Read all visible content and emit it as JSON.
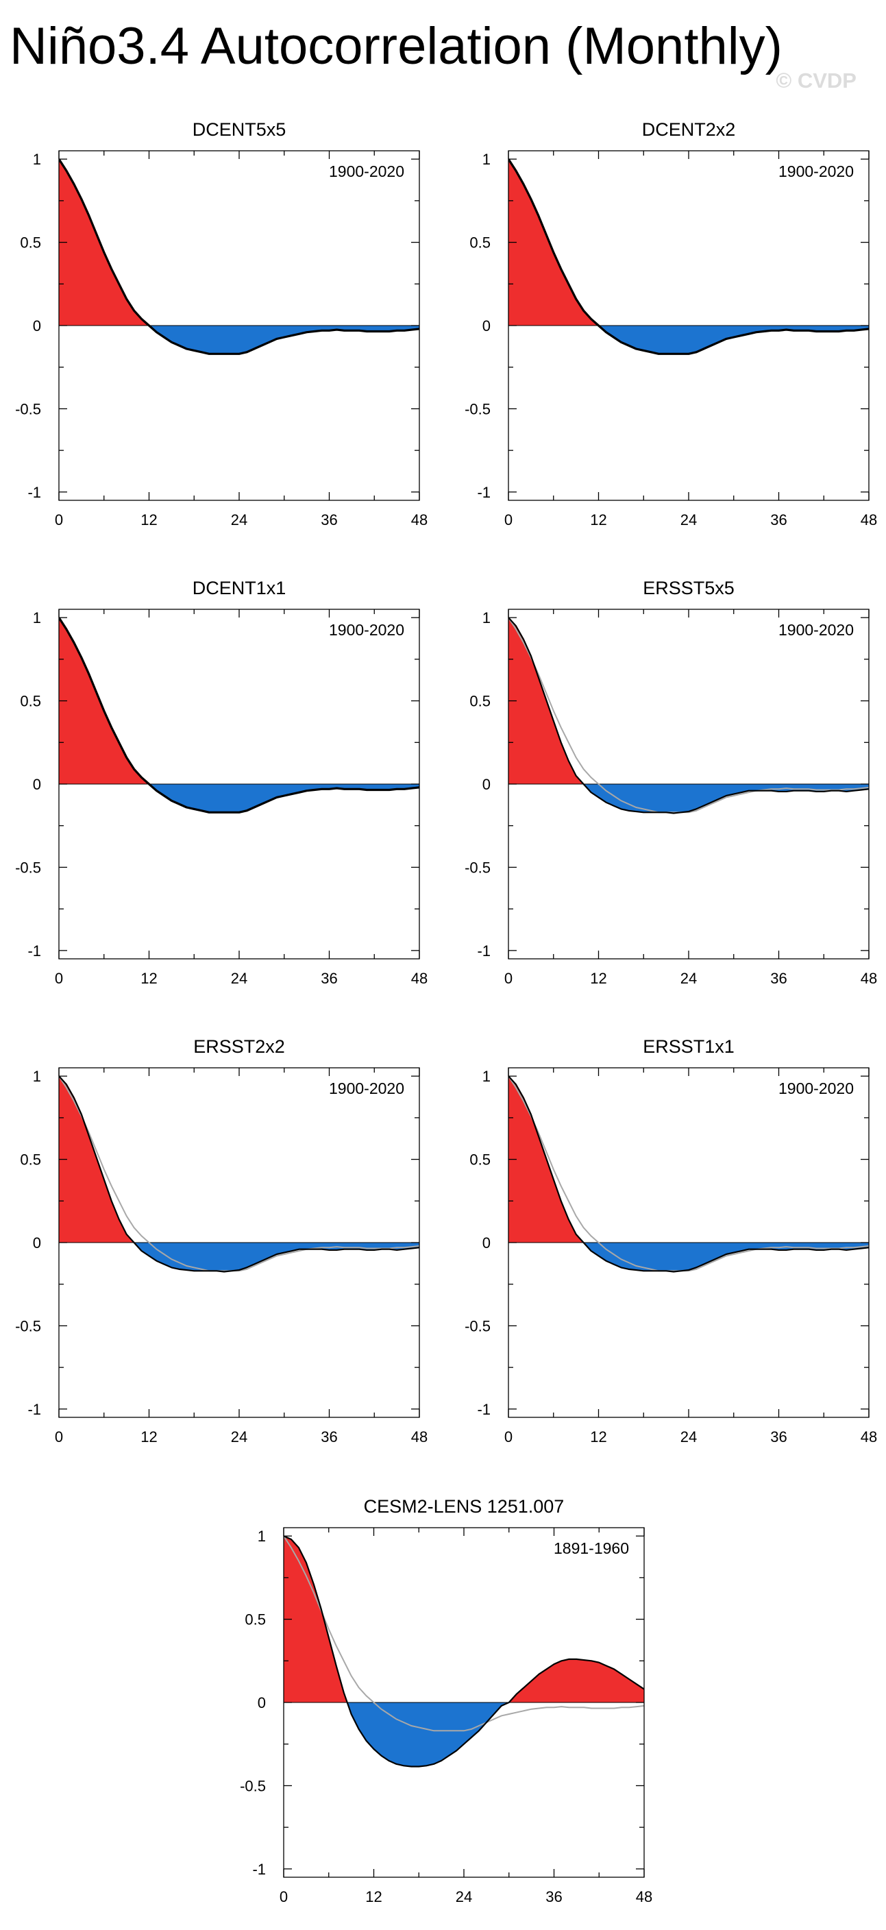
{
  "title": "Niño3.4 Autocorrelation (Monthly)",
  "watermark": "© CVDP",
  "colors": {
    "positive_fill": "#ee2e2e",
    "negative_fill": "#1c74d0",
    "main_line": "#000000",
    "reference_line": "#a8a8a8",
    "axis": "#000000"
  },
  "chart_data": [
    {
      "type": "area",
      "title": "DCENT5x5",
      "period": "1900-2020",
      "x": [
        0,
        1,
        2,
        3,
        4,
        5,
        6,
        7,
        8,
        9,
        10,
        11,
        12,
        13,
        14,
        15,
        16,
        17,
        18,
        19,
        20,
        21,
        22,
        23,
        24,
        25,
        26,
        27,
        28,
        29,
        30,
        31,
        32,
        33,
        34,
        35,
        36,
        37,
        38,
        39,
        40,
        41,
        42,
        43,
        44,
        45,
        46,
        47,
        48
      ],
      "values": [
        1.0,
        0.93,
        0.85,
        0.76,
        0.66,
        0.55,
        0.44,
        0.34,
        0.25,
        0.16,
        0.09,
        0.04,
        0.0,
        -0.04,
        -0.07,
        -0.1,
        -0.12,
        -0.14,
        -0.15,
        -0.16,
        -0.17,
        -0.17,
        -0.17,
        -0.17,
        -0.17,
        -0.16,
        -0.14,
        -0.12,
        -0.1,
        -0.08,
        -0.07,
        -0.06,
        -0.05,
        -0.04,
        -0.035,
        -0.03,
        -0.03,
        -0.025,
        -0.03,
        -0.03,
        -0.03,
        -0.035,
        -0.035,
        -0.035,
        -0.035,
        -0.03,
        -0.03,
        -0.025,
        -0.02
      ],
      "reference": [
        1.0,
        0.93,
        0.85,
        0.76,
        0.66,
        0.55,
        0.44,
        0.34,
        0.25,
        0.16,
        0.09,
        0.04,
        0.0,
        -0.04,
        -0.07,
        -0.1,
        -0.12,
        -0.14,
        -0.15,
        -0.16,
        -0.17,
        -0.17,
        -0.17,
        -0.17,
        -0.17,
        -0.16,
        -0.14,
        -0.12,
        -0.1,
        -0.08,
        -0.07,
        -0.06,
        -0.05,
        -0.04,
        -0.035,
        -0.03,
        -0.03,
        -0.025,
        -0.03,
        -0.03,
        -0.03,
        -0.035,
        -0.035,
        -0.035,
        -0.035,
        -0.03,
        -0.03,
        -0.025,
        -0.02
      ],
      "xlim": [
        0,
        48
      ],
      "ylim": [
        -1.05,
        1.05
      ],
      "xticks": [
        "0",
        "12",
        "24",
        "36",
        "48"
      ],
      "yticks": [
        "1",
        "0.5",
        "0",
        "-0.5",
        "-1"
      ],
      "xlabel": "",
      "ylabel": ""
    },
    {
      "type": "area",
      "title": "DCENT2x2",
      "period": "1900-2020",
      "x": [
        0,
        1,
        2,
        3,
        4,
        5,
        6,
        7,
        8,
        9,
        10,
        11,
        12,
        13,
        14,
        15,
        16,
        17,
        18,
        19,
        20,
        21,
        22,
        23,
        24,
        25,
        26,
        27,
        28,
        29,
        30,
        31,
        32,
        33,
        34,
        35,
        36,
        37,
        38,
        39,
        40,
        41,
        42,
        43,
        44,
        45,
        46,
        47,
        48
      ],
      "values": [
        1.0,
        0.93,
        0.85,
        0.76,
        0.66,
        0.55,
        0.44,
        0.34,
        0.25,
        0.16,
        0.09,
        0.04,
        0.0,
        -0.04,
        -0.07,
        -0.1,
        -0.12,
        -0.14,
        -0.15,
        -0.16,
        -0.17,
        -0.17,
        -0.17,
        -0.17,
        -0.17,
        -0.16,
        -0.14,
        -0.12,
        -0.1,
        -0.08,
        -0.07,
        -0.06,
        -0.05,
        -0.04,
        -0.035,
        -0.03,
        -0.03,
        -0.025,
        -0.03,
        -0.03,
        -0.03,
        -0.035,
        -0.035,
        -0.035,
        -0.035,
        -0.03,
        -0.03,
        -0.025,
        -0.02
      ],
      "reference": [
        1.0,
        0.93,
        0.85,
        0.76,
        0.66,
        0.55,
        0.44,
        0.34,
        0.25,
        0.16,
        0.09,
        0.04,
        0.0,
        -0.04,
        -0.07,
        -0.1,
        -0.12,
        -0.14,
        -0.15,
        -0.16,
        -0.17,
        -0.17,
        -0.17,
        -0.17,
        -0.17,
        -0.16,
        -0.14,
        -0.12,
        -0.1,
        -0.08,
        -0.07,
        -0.06,
        -0.05,
        -0.04,
        -0.035,
        -0.03,
        -0.03,
        -0.025,
        -0.03,
        -0.03,
        -0.03,
        -0.035,
        -0.035,
        -0.035,
        -0.035,
        -0.03,
        -0.03,
        -0.025,
        -0.02
      ],
      "xlim": [
        0,
        48
      ],
      "ylim": [
        -1.05,
        1.05
      ],
      "xticks": [
        "0",
        "12",
        "24",
        "36",
        "48"
      ],
      "yticks": [
        "1",
        "0.5",
        "0",
        "-0.5",
        "-1"
      ],
      "xlabel": "",
      "ylabel": ""
    },
    {
      "type": "area",
      "title": "DCENT1x1",
      "period": "1900-2020",
      "x": [
        0,
        1,
        2,
        3,
        4,
        5,
        6,
        7,
        8,
        9,
        10,
        11,
        12,
        13,
        14,
        15,
        16,
        17,
        18,
        19,
        20,
        21,
        22,
        23,
        24,
        25,
        26,
        27,
        28,
        29,
        30,
        31,
        32,
        33,
        34,
        35,
        36,
        37,
        38,
        39,
        40,
        41,
        42,
        43,
        44,
        45,
        46,
        47,
        48
      ],
      "values": [
        1.0,
        0.93,
        0.85,
        0.76,
        0.66,
        0.55,
        0.44,
        0.34,
        0.25,
        0.16,
        0.09,
        0.04,
        0.0,
        -0.04,
        -0.07,
        -0.1,
        -0.12,
        -0.14,
        -0.15,
        -0.16,
        -0.17,
        -0.17,
        -0.17,
        -0.17,
        -0.17,
        -0.16,
        -0.14,
        -0.12,
        -0.1,
        -0.08,
        -0.07,
        -0.06,
        -0.05,
        -0.04,
        -0.035,
        -0.03,
        -0.03,
        -0.025,
        -0.03,
        -0.03,
        -0.03,
        -0.035,
        -0.035,
        -0.035,
        -0.035,
        -0.03,
        -0.03,
        -0.025,
        -0.02
      ],
      "reference": [
        1.0,
        0.93,
        0.85,
        0.76,
        0.66,
        0.55,
        0.44,
        0.34,
        0.25,
        0.16,
        0.09,
        0.04,
        0.0,
        -0.04,
        -0.07,
        -0.1,
        -0.12,
        -0.14,
        -0.15,
        -0.16,
        -0.17,
        -0.17,
        -0.17,
        -0.17,
        -0.17,
        -0.16,
        -0.14,
        -0.12,
        -0.1,
        -0.08,
        -0.07,
        -0.06,
        -0.05,
        -0.04,
        -0.035,
        -0.03,
        -0.03,
        -0.025,
        -0.03,
        -0.03,
        -0.03,
        -0.035,
        -0.035,
        -0.035,
        -0.035,
        -0.03,
        -0.03,
        -0.025,
        -0.02
      ],
      "xlim": [
        0,
        48
      ],
      "ylim": [
        -1.05,
        1.05
      ],
      "xticks": [
        "0",
        "12",
        "24",
        "36",
        "48"
      ],
      "yticks": [
        "1",
        "0.5",
        "0",
        "-0.5",
        "-1"
      ],
      "xlabel": "",
      "ylabel": ""
    },
    {
      "type": "area",
      "title": "ERSST5x5",
      "period": "1900-2020",
      "x": [
        0,
        1,
        2,
        3,
        4,
        5,
        6,
        7,
        8,
        9,
        10,
        11,
        12,
        13,
        14,
        15,
        16,
        17,
        18,
        19,
        20,
        21,
        22,
        23,
        24,
        25,
        26,
        27,
        28,
        29,
        30,
        31,
        32,
        33,
        34,
        35,
        36,
        37,
        38,
        39,
        40,
        41,
        42,
        43,
        44,
        45,
        46,
        47,
        48
      ],
      "values": [
        1.0,
        0.95,
        0.87,
        0.77,
        0.64,
        0.51,
        0.38,
        0.25,
        0.14,
        0.05,
        0.0,
        -0.05,
        -0.08,
        -0.11,
        -0.13,
        -0.15,
        -0.16,
        -0.165,
        -0.17,
        -0.17,
        -0.17,
        -0.17,
        -0.175,
        -0.17,
        -0.165,
        -0.15,
        -0.13,
        -0.11,
        -0.09,
        -0.07,
        -0.06,
        -0.05,
        -0.04,
        -0.04,
        -0.04,
        -0.04,
        -0.045,
        -0.045,
        -0.04,
        -0.04,
        -0.04,
        -0.045,
        -0.045,
        -0.04,
        -0.04,
        -0.045,
        -0.04,
        -0.035,
        -0.03
      ],
      "reference": [
        1.0,
        0.93,
        0.85,
        0.76,
        0.66,
        0.55,
        0.44,
        0.34,
        0.25,
        0.16,
        0.09,
        0.04,
        0.0,
        -0.04,
        -0.07,
        -0.1,
        -0.12,
        -0.14,
        -0.15,
        -0.16,
        -0.17,
        -0.17,
        -0.17,
        -0.17,
        -0.17,
        -0.16,
        -0.14,
        -0.12,
        -0.1,
        -0.08,
        -0.07,
        -0.06,
        -0.05,
        -0.04,
        -0.035,
        -0.03,
        -0.03,
        -0.025,
        -0.03,
        -0.03,
        -0.03,
        -0.035,
        -0.035,
        -0.035,
        -0.035,
        -0.03,
        -0.03,
        -0.025,
        -0.02
      ],
      "xlim": [
        0,
        48
      ],
      "ylim": [
        -1.05,
        1.05
      ],
      "xticks": [
        "0",
        "12",
        "24",
        "36",
        "48"
      ],
      "yticks": [
        "1",
        "0.5",
        "0",
        "-0.5",
        "-1"
      ],
      "xlabel": "",
      "ylabel": ""
    },
    {
      "type": "area",
      "title": "ERSST2x2",
      "period": "1900-2020",
      "x": [
        0,
        1,
        2,
        3,
        4,
        5,
        6,
        7,
        8,
        9,
        10,
        11,
        12,
        13,
        14,
        15,
        16,
        17,
        18,
        19,
        20,
        21,
        22,
        23,
        24,
        25,
        26,
        27,
        28,
        29,
        30,
        31,
        32,
        33,
        34,
        35,
        36,
        37,
        38,
        39,
        40,
        41,
        42,
        43,
        44,
        45,
        46,
        47,
        48
      ],
      "values": [
        1.0,
        0.95,
        0.87,
        0.77,
        0.64,
        0.51,
        0.38,
        0.25,
        0.14,
        0.05,
        0.0,
        -0.05,
        -0.08,
        -0.11,
        -0.13,
        -0.15,
        -0.16,
        -0.165,
        -0.17,
        -0.17,
        -0.17,
        -0.17,
        -0.175,
        -0.17,
        -0.165,
        -0.15,
        -0.13,
        -0.11,
        -0.09,
        -0.07,
        -0.06,
        -0.05,
        -0.04,
        -0.04,
        -0.04,
        -0.04,
        -0.045,
        -0.045,
        -0.04,
        -0.04,
        -0.04,
        -0.045,
        -0.045,
        -0.04,
        -0.04,
        -0.045,
        -0.04,
        -0.035,
        -0.03
      ],
      "reference": [
        1.0,
        0.93,
        0.85,
        0.76,
        0.66,
        0.55,
        0.44,
        0.34,
        0.25,
        0.16,
        0.09,
        0.04,
        0.0,
        -0.04,
        -0.07,
        -0.1,
        -0.12,
        -0.14,
        -0.15,
        -0.16,
        -0.17,
        -0.17,
        -0.17,
        -0.17,
        -0.17,
        -0.16,
        -0.14,
        -0.12,
        -0.1,
        -0.08,
        -0.07,
        -0.06,
        -0.05,
        -0.04,
        -0.035,
        -0.03,
        -0.03,
        -0.025,
        -0.03,
        -0.03,
        -0.03,
        -0.035,
        -0.035,
        -0.035,
        -0.035,
        -0.03,
        -0.03,
        -0.025,
        -0.02
      ],
      "xlim": [
        0,
        48
      ],
      "ylim": [
        -1.05,
        1.05
      ],
      "xticks": [
        "0",
        "12",
        "24",
        "36",
        "48"
      ],
      "yticks": [
        "1",
        "0.5",
        "0",
        "-0.5",
        "-1"
      ],
      "xlabel": "",
      "ylabel": ""
    },
    {
      "type": "area",
      "title": "ERSST1x1",
      "period": "1900-2020",
      "x": [
        0,
        1,
        2,
        3,
        4,
        5,
        6,
        7,
        8,
        9,
        10,
        11,
        12,
        13,
        14,
        15,
        16,
        17,
        18,
        19,
        20,
        21,
        22,
        23,
        24,
        25,
        26,
        27,
        28,
        29,
        30,
        31,
        32,
        33,
        34,
        35,
        36,
        37,
        38,
        39,
        40,
        41,
        42,
        43,
        44,
        45,
        46,
        47,
        48
      ],
      "values": [
        1.0,
        0.95,
        0.87,
        0.77,
        0.64,
        0.51,
        0.38,
        0.25,
        0.14,
        0.05,
        0.0,
        -0.05,
        -0.08,
        -0.11,
        -0.13,
        -0.15,
        -0.16,
        -0.165,
        -0.17,
        -0.17,
        -0.17,
        -0.17,
        -0.175,
        -0.17,
        -0.165,
        -0.15,
        -0.13,
        -0.11,
        -0.09,
        -0.07,
        -0.06,
        -0.05,
        -0.04,
        -0.04,
        -0.04,
        -0.04,
        -0.045,
        -0.045,
        -0.04,
        -0.04,
        -0.04,
        -0.045,
        -0.045,
        -0.04,
        -0.04,
        -0.045,
        -0.04,
        -0.035,
        -0.03
      ],
      "reference": [
        1.0,
        0.93,
        0.85,
        0.76,
        0.66,
        0.55,
        0.44,
        0.34,
        0.25,
        0.16,
        0.09,
        0.04,
        0.0,
        -0.04,
        -0.07,
        -0.1,
        -0.12,
        -0.14,
        -0.15,
        -0.16,
        -0.17,
        -0.17,
        -0.17,
        -0.17,
        -0.17,
        -0.16,
        -0.14,
        -0.12,
        -0.1,
        -0.08,
        -0.07,
        -0.06,
        -0.05,
        -0.04,
        -0.035,
        -0.03,
        -0.03,
        -0.025,
        -0.03,
        -0.03,
        -0.03,
        -0.035,
        -0.035,
        -0.035,
        -0.035,
        -0.03,
        -0.03,
        -0.025,
        -0.02
      ],
      "xlim": [
        0,
        48
      ],
      "ylim": [
        -1.05,
        1.05
      ],
      "xticks": [
        "0",
        "12",
        "24",
        "36",
        "48"
      ],
      "yticks": [
        "1",
        "0.5",
        "0",
        "-0.5",
        "-1"
      ],
      "xlabel": "",
      "ylabel": ""
    },
    {
      "type": "area",
      "title": "CESM2-LENS 1251.007",
      "period": "1891-1960",
      "x": [
        0,
        1,
        2,
        3,
        4,
        5,
        6,
        7,
        8,
        9,
        10,
        11,
        12,
        13,
        14,
        15,
        16,
        17,
        18,
        19,
        20,
        21,
        22,
        23,
        24,
        25,
        26,
        27,
        28,
        29,
        30,
        31,
        32,
        33,
        34,
        35,
        36,
        37,
        38,
        39,
        40,
        41,
        42,
        43,
        44,
        45,
        46,
        47,
        48
      ],
      "values": [
        1.0,
        0.98,
        0.93,
        0.84,
        0.71,
        0.56,
        0.39,
        0.22,
        0.06,
        -0.07,
        -0.16,
        -0.23,
        -0.28,
        -0.32,
        -0.35,
        -0.37,
        -0.38,
        -0.385,
        -0.385,
        -0.38,
        -0.37,
        -0.35,
        -0.32,
        -0.29,
        -0.25,
        -0.21,
        -0.17,
        -0.12,
        -0.07,
        -0.02,
        0.0,
        0.05,
        0.09,
        0.13,
        0.17,
        0.2,
        0.23,
        0.25,
        0.26,
        0.26,
        0.255,
        0.25,
        0.24,
        0.22,
        0.2,
        0.17,
        0.14,
        0.11,
        0.08
      ],
      "reference": [
        1.0,
        0.93,
        0.85,
        0.76,
        0.66,
        0.55,
        0.44,
        0.34,
        0.25,
        0.16,
        0.09,
        0.04,
        0.0,
        -0.04,
        -0.07,
        -0.1,
        -0.12,
        -0.14,
        -0.15,
        -0.16,
        -0.17,
        -0.17,
        -0.17,
        -0.17,
        -0.17,
        -0.16,
        -0.14,
        -0.12,
        -0.1,
        -0.08,
        -0.07,
        -0.06,
        -0.05,
        -0.04,
        -0.035,
        -0.03,
        -0.03,
        -0.025,
        -0.03,
        -0.03,
        -0.03,
        -0.035,
        -0.035,
        -0.035,
        -0.035,
        -0.03,
        -0.03,
        -0.025,
        -0.02
      ],
      "xlim": [
        0,
        48
      ],
      "ylim": [
        -1.05,
        1.05
      ],
      "xticks": [
        "0",
        "12",
        "24",
        "36",
        "48"
      ],
      "yticks": [
        "1",
        "0.5",
        "0",
        "-0.5",
        "-1"
      ],
      "xlabel": "",
      "ylabel": ""
    }
  ]
}
